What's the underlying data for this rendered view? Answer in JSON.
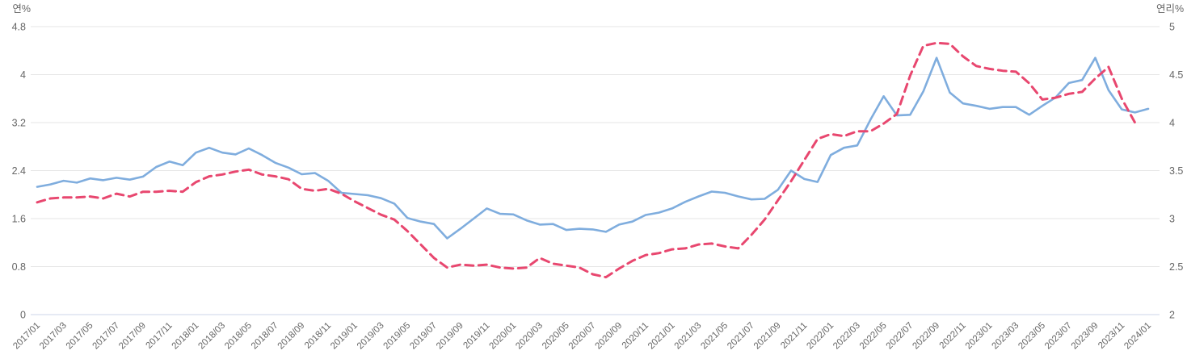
{
  "chart_data": {
    "type": "line",
    "title": "",
    "legend": "none",
    "grid": "horizontal",
    "left_axis": {
      "label": "연%",
      "min": 0,
      "max": 4.8,
      "ticks": [
        4.8,
        4,
        3.2,
        2.4,
        1.6,
        0.8,
        0
      ]
    },
    "right_axis": {
      "label": "연리%",
      "min": 2,
      "max": 5,
      "ticks": [
        5,
        4.5,
        4,
        3.5,
        3,
        2.5,
        2
      ]
    },
    "x_tick_labels": [
      "2017/01",
      "2017/03",
      "2017/05",
      "2017/07",
      "2017/09",
      "2017/11",
      "2018/01",
      "2018/03",
      "2018/05",
      "2018/07",
      "2018/09",
      "2018/11",
      "2019/01",
      "2019/03",
      "2019/05",
      "2019/07",
      "2019/09",
      "2019/11",
      "2020/01",
      "2020/03",
      "2020/05",
      "2020/07",
      "2020/09",
      "2020/11",
      "2021/01",
      "2021/03",
      "2021/05",
      "2021/07",
      "2021/09",
      "2021/11",
      "2022/01",
      "2022/03",
      "2022/05",
      "2022/07",
      "2022/09",
      "2022/11",
      "2023/01",
      "2023/03",
      "2023/05",
      "2023/07",
      "2023/09",
      "2023/11",
      "2024/01"
    ],
    "x": [
      "2017/01",
      "2017/02",
      "2017/03",
      "2017/04",
      "2017/05",
      "2017/06",
      "2017/07",
      "2017/08",
      "2017/09",
      "2017/10",
      "2017/11",
      "2017/12",
      "2018/01",
      "2018/02",
      "2018/03",
      "2018/04",
      "2018/05",
      "2018/06",
      "2018/07",
      "2018/08",
      "2018/09",
      "2018/10",
      "2018/11",
      "2018/12",
      "2019/01",
      "2019/02",
      "2019/03",
      "2019/04",
      "2019/05",
      "2019/06",
      "2019/07",
      "2019/08",
      "2019/09",
      "2019/10",
      "2019/11",
      "2019/12",
      "2020/01",
      "2020/02",
      "2020/03",
      "2020/04",
      "2020/05",
      "2020/06",
      "2020/07",
      "2020/08",
      "2020/09",
      "2020/10",
      "2020/11",
      "2020/12",
      "2021/01",
      "2021/02",
      "2021/03",
      "2021/04",
      "2021/05",
      "2021/06",
      "2021/07",
      "2021/08",
      "2021/09",
      "2021/10",
      "2021/11",
      "2021/12",
      "2022/01",
      "2022/02",
      "2022/03",
      "2022/04",
      "2022/05",
      "2022/06",
      "2022/07",
      "2022/08",
      "2022/09",
      "2022/10",
      "2022/11",
      "2022/12",
      "2023/01",
      "2023/02",
      "2023/03",
      "2023/04",
      "2023/05",
      "2023/06",
      "2023/07",
      "2023/08",
      "2023/09",
      "2023/10",
      "2023/11",
      "2023/12",
      "2024/01"
    ],
    "series": [
      {
        "name": "blue-solid-series",
        "axis": "left",
        "color": "#7fadde",
        "style": "solid",
        "values": [
          2.13,
          2.17,
          2.23,
          2.2,
          2.27,
          2.24,
          2.28,
          2.25,
          2.3,
          2.46,
          2.55,
          2.49,
          2.7,
          2.78,
          2.7,
          2.67,
          2.77,
          2.66,
          2.53,
          2.45,
          2.34,
          2.36,
          2.23,
          2.03,
          2.01,
          1.99,
          1.94,
          1.85,
          1.61,
          1.55,
          1.51,
          1.27,
          1.43,
          1.6,
          1.77,
          1.68,
          1.67,
          1.57,
          1.5,
          1.51,
          1.41,
          1.43,
          1.42,
          1.38,
          1.5,
          1.55,
          1.66,
          1.7,
          1.77,
          1.88,
          1.97,
          2.05,
          2.03,
          1.97,
          1.92,
          1.93,
          2.08,
          2.4,
          2.26,
          2.21,
          2.66,
          2.78,
          2.82,
          3.25,
          3.64,
          3.32,
          3.33,
          3.72,
          4.28,
          3.7,
          3.52,
          3.48,
          3.43,
          3.46,
          3.46,
          3.33,
          3.48,
          3.62,
          3.86,
          3.91,
          4.28,
          3.74,
          3.42,
          3.37,
          3.43
        ]
      },
      {
        "name": "pink-dashed-series",
        "axis": "right",
        "color": "#e8476f",
        "style": "dashed",
        "values": [
          3.17,
          3.21,
          3.22,
          3.22,
          3.23,
          3.21,
          3.26,
          3.23,
          3.28,
          3.28,
          3.29,
          3.28,
          3.38,
          3.44,
          3.46,
          3.49,
          3.51,
          3.46,
          3.44,
          3.41,
          3.31,
          3.29,
          3.31,
          3.26,
          3.18,
          3.11,
          3.04,
          2.99,
          2.87,
          2.73,
          2.59,
          2.49,
          2.52,
          2.51,
          2.52,
          2.49,
          2.48,
          2.49,
          2.59,
          2.53,
          2.51,
          2.49,
          2.42,
          2.39,
          2.48,
          2.56,
          2.62,
          2.64,
          2.68,
          2.69,
          2.73,
          2.74,
          2.71,
          2.69,
          2.83,
          2.99,
          3.19,
          3.39,
          3.61,
          3.83,
          3.88,
          3.86,
          3.91,
          3.91,
          3.99,
          4.09,
          4.49,
          4.8,
          4.83,
          4.82,
          4.69,
          4.59,
          4.56,
          4.54,
          4.53,
          4.41,
          4.24,
          4.26,
          4.3,
          4.32,
          4.46,
          4.58,
          4.25,
          4.0,
          null
        ]
      }
    ],
    "colors": {
      "grid_line": "#e6e6e6",
      "baseline": "#ccd6e8",
      "tick_text": "#666666",
      "axis_title_text": "#666666",
      "background": "#ffffff"
    }
  }
}
